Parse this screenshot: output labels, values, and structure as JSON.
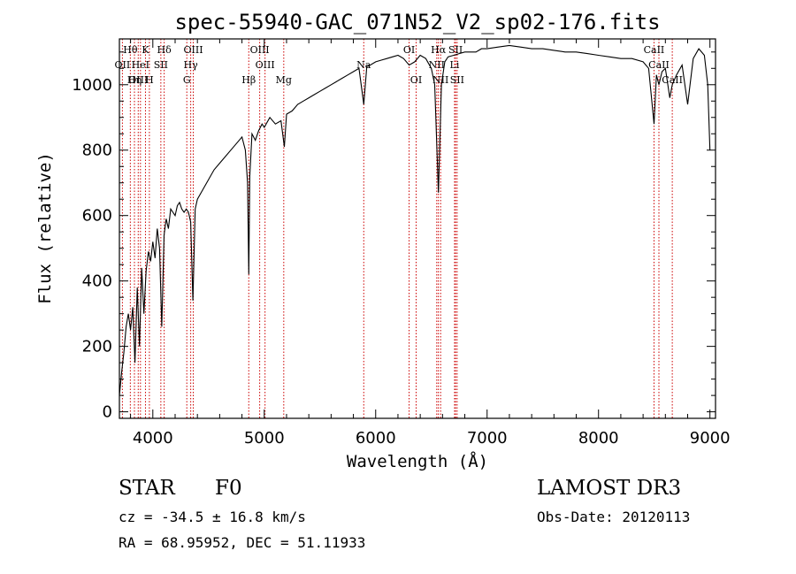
{
  "chart_data": {
    "type": "line",
    "title": "spec-55940-GAC_071N52_V2_sp02-176.fits",
    "xlabel": "Wavelength (Å)",
    "ylabel": "Flux (relative)",
    "xlim": [
      3700,
      9050
    ],
    "ylim": [
      -20,
      1140
    ],
    "xticks": [
      4000,
      5000,
      6000,
      7000,
      8000,
      9000
    ],
    "yticks": [
      0,
      200,
      400,
      600,
      800,
      1000
    ],
    "grid": false,
    "spectrum": {
      "wavelength": [
        3700,
        3720,
        3740,
        3760,
        3780,
        3800,
        3820,
        3840,
        3860,
        3880,
        3900,
        3920,
        3940,
        3960,
        3980,
        4000,
        4020,
        4040,
        4060,
        4080,
        4101,
        4120,
        4140,
        4160,
        4180,
        4200,
        4220,
        4240,
        4260,
        4280,
        4300,
        4320,
        4340,
        4360,
        4380,
        4400,
        4450,
        4500,
        4550,
        4600,
        4650,
        4700,
        4750,
        4800,
        4830,
        4850,
        4861,
        4870,
        4890,
        4920,
        4950,
        4980,
        5000,
        5050,
        5100,
        5150,
        5180,
        5200,
        5250,
        5300,
        5350,
        5400,
        5450,
        5500,
        5550,
        5600,
        5650,
        5700,
        5750,
        5800,
        5850,
        5893,
        5920,
        5950,
        6000,
        6050,
        6100,
        6150,
        6200,
        6250,
        6300,
        6350,
        6400,
        6450,
        6500,
        6530,
        6563,
        6590,
        6620,
        6650,
        6700,
        6750,
        6800,
        6850,
        6900,
        6950,
        7000,
        7100,
        7200,
        7300,
        7400,
        7500,
        7600,
        7700,
        7800,
        7900,
        8000,
        8100,
        8200,
        8300,
        8400,
        8450,
        8498,
        8520,
        8542,
        8570,
        8600,
        8640,
        8662,
        8700,
        8750,
        8800,
        8850,
        8900,
        8950,
        8980,
        9000
      ],
      "flux": [
        50,
        120,
        180,
        260,
        300,
        250,
        320,
        150,
        380,
        200,
        440,
        300,
        430,
        490,
        460,
        520,
        470,
        560,
        500,
        260,
        540,
        590,
        560,
        620,
        610,
        600,
        630,
        640,
        620,
        610,
        620,
        610,
        580,
        340,
        620,
        650,
        680,
        710,
        740,
        760,
        780,
        800,
        820,
        840,
        800,
        700,
        420,
        720,
        850,
        830,
        860,
        880,
        870,
        900,
        880,
        890,
        810,
        910,
        920,
        940,
        950,
        960,
        970,
        980,
        990,
        1000,
        1010,
        1020,
        1030,
        1040,
        1050,
        940,
        1055,
        1060,
        1070,
        1075,
        1080,
        1085,
        1090,
        1080,
        1060,
        1070,
        1090,
        1080,
        1050,
        1000,
        670,
        1000,
        1070,
        1085,
        1090,
        1095,
        1100,
        1100,
        1100,
        1110,
        1110,
        1115,
        1120,
        1115,
        1110,
        1110,
        1105,
        1100,
        1100,
        1095,
        1090,
        1085,
        1080,
        1080,
        1070,
        1050,
        880,
        1030,
        1000,
        1040,
        1050,
        960,
        1000,
        1030,
        1060,
        940,
        1080,
        1110,
        1090,
        1000,
        800
      ]
    },
    "lines": [
      {
        "label": "Hθ",
        "wl": 3798,
        "row": 1
      },
      {
        "label": "OII",
        "wl": 3727,
        "row": 2
      },
      {
        "label": "OIII",
        "wl": 3869,
        "row": 3
      },
      {
        "label": "K",
        "wl": 3934,
        "row": 1
      },
      {
        "label": "HeI",
        "wl": 3889,
        "row": 2
      },
      {
        "label": "Hη",
        "wl": 3835,
        "row": 3
      },
      {
        "label": "SII",
        "wl": 4072,
        "row": 2
      },
      {
        "label": "H",
        "wl": 3969,
        "row": 3
      },
      {
        "label": "Hδ",
        "wl": 4102,
        "row": 1
      },
      {
        "label": "OIII",
        "wl": 4363,
        "row": 1
      },
      {
        "label": "Hγ",
        "wl": 4340,
        "row": 2
      },
      {
        "label": "G",
        "wl": 4305,
        "row": 3
      },
      {
        "label": "Hβ",
        "wl": 4861,
        "row": 3
      },
      {
        "label": "OIII",
        "wl": 4959,
        "row": 1
      },
      {
        "label": "OIII",
        "wl": 5007,
        "row": 2
      },
      {
        "label": "Mg",
        "wl": 5175,
        "row": 3
      },
      {
        "label": "Na",
        "wl": 5893,
        "row": 2
      },
      {
        "label": "OI",
        "wl": 6300,
        "row": 1
      },
      {
        "label": "OI",
        "wl": 6363,
        "row": 3
      },
      {
        "label": "Hα",
        "wl": 6563,
        "row": 1
      },
      {
        "label": "NII",
        "wl": 6548,
        "row": 2
      },
      {
        "label": "NII",
        "wl": 6583,
        "row": 3
      },
      {
        "label": "SII",
        "wl": 6717,
        "row": 1
      },
      {
        "label": "Li",
        "wl": 6708,
        "row": 2
      },
      {
        "label": "SII",
        "wl": 6731,
        "row": 3
      },
      {
        "label": "CaII",
        "wl": 8498,
        "row": 1
      },
      {
        "label": "CaII",
        "wl": 8542,
        "row": 2
      },
      {
        "label": "CaII",
        "wl": 8662,
        "row": 3
      }
    ],
    "line_color": "#cc0000",
    "spectrum_color": "#000000"
  },
  "info": {
    "class_label": "STAR",
    "subclass": "F0",
    "survey": "LAMOST DR3",
    "cz": "cz = -34.5 ± 16.8 km/s",
    "obs_date": "Obs-Date: 20120113",
    "coords": "RA =  68.95952, DEC =  51.11933"
  }
}
